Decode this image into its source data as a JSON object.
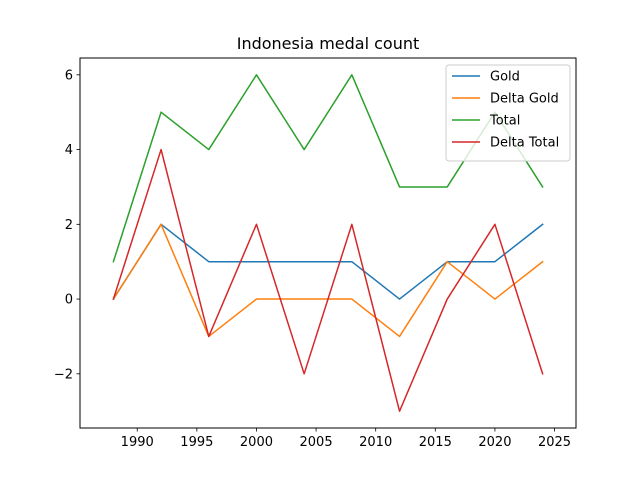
{
  "chart_data": {
    "type": "line",
    "title": "Indonesia medal count",
    "xlabel": "",
    "ylabel": "",
    "x": [
      1988,
      1992,
      1996,
      2000,
      2004,
      2008,
      2012,
      2016,
      2020,
      2024
    ],
    "xlim": [
      1985.2,
      2026.8
    ],
    "ylim": [
      -3.45,
      6.45
    ],
    "xticks": [
      1990,
      1995,
      2000,
      2005,
      2010,
      2015,
      2020,
      2025
    ],
    "yticks": [
      -2,
      0,
      2,
      4,
      6
    ],
    "ytick_labels": [
      "−2",
      "0",
      "2",
      "4",
      "6"
    ],
    "grid": false,
    "legend_position": "top-right",
    "series": [
      {
        "name": "Gold",
        "color": "#1f77b4",
        "values": [
          0,
          2,
          1,
          1,
          1,
          1,
          0,
          1,
          1,
          2
        ]
      },
      {
        "name": "Delta Gold",
        "color": "#ff7f0e",
        "values": [
          0,
          2,
          -1,
          0,
          0,
          0,
          -1,
          1,
          0,
          1
        ]
      },
      {
        "name": "Total",
        "color": "#2ca02c",
        "values": [
          1,
          5,
          4,
          6,
          4,
          6,
          3,
          3,
          5,
          3
        ]
      },
      {
        "name": "Delta Total",
        "color": "#d62728",
        "values": [
          0,
          4,
          -1,
          2,
          -2,
          2,
          -3,
          0,
          2,
          -2
        ]
      }
    ]
  }
}
